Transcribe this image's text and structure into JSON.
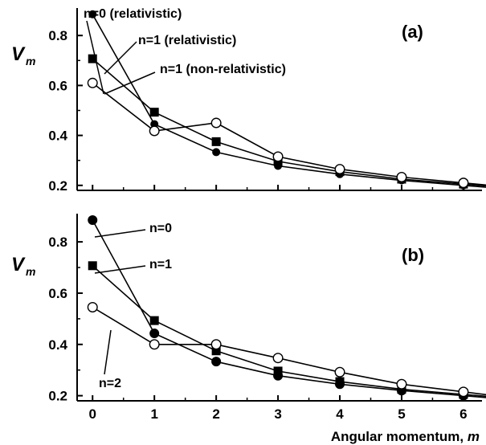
{
  "chart_data": [
    {
      "type": "line",
      "panel_label": "(a)",
      "ylabel": "V",
      "ylabel_sub": "m",
      "xlabel": "",
      "ylim": [
        0.18,
        0.91
      ],
      "xlim": [
        -0.25,
        6.3
      ],
      "yticks": [
        0.2,
        0.4,
        0.6,
        0.8
      ],
      "ytick_labels": [
        "0.2",
        "0.4",
        "0.6",
        "0.8"
      ],
      "xticks": [
        0,
        1,
        2,
        3,
        4,
        5,
        6
      ],
      "xtick_labels": [],
      "x": [
        0,
        1,
        2,
        3,
        4,
        5,
        6
      ],
      "series": [
        {
          "name": "n=0 (relativistic)",
          "marker": "filled-circle",
          "values": [
            0.885,
            0.445,
            0.333,
            0.278,
            0.245,
            0.22,
            0.2
          ]
        },
        {
          "name": "n=1 (relativistic)",
          "marker": "filled-square",
          "values": [
            0.707,
            0.493,
            0.375,
            0.296,
            0.255,
            0.225,
            0.205
          ]
        },
        {
          "name": "n=1 (non-relativistic)",
          "marker": "open-circle",
          "values": [
            0.61,
            0.418,
            0.45,
            0.315,
            0.265,
            0.233,
            0.21
          ]
        }
      ]
    },
    {
      "type": "line",
      "panel_label": "(b)",
      "ylabel": "V",
      "ylabel_sub": "m",
      "xlabel": "Angular momentum, m",
      "xlabel_text": "Angular momentum, ",
      "xlabel_var": "m",
      "ylim": [
        0.18,
        0.91
      ],
      "xlim": [
        -0.25,
        6.3
      ],
      "yticks": [
        0.2,
        0.4,
        0.6,
        0.8
      ],
      "ytick_labels": [
        "0.2",
        "0.4",
        "0.6",
        "0.8"
      ],
      "xticks": [
        0,
        1,
        2,
        3,
        4,
        5,
        6
      ],
      "xtick_labels": [
        "0",
        "1",
        "2",
        "3",
        "4",
        "5",
        "6"
      ],
      "x": [
        0,
        1,
        2,
        3,
        4,
        5,
        6
      ],
      "series": [
        {
          "name": "n=0",
          "marker": "filled-circle",
          "values": [
            0.885,
            0.443,
            0.333,
            0.278,
            0.245,
            0.22,
            0.2
          ]
        },
        {
          "name": "n=1",
          "marker": "filled-square",
          "values": [
            0.707,
            0.493,
            0.375,
            0.296,
            0.255,
            0.225,
            0.205
          ]
        },
        {
          "name": "n=2",
          "marker": "open-circle",
          "values": [
            0.545,
            0.4,
            0.4,
            0.347,
            0.292,
            0.245,
            0.215
          ]
        }
      ]
    }
  ]
}
